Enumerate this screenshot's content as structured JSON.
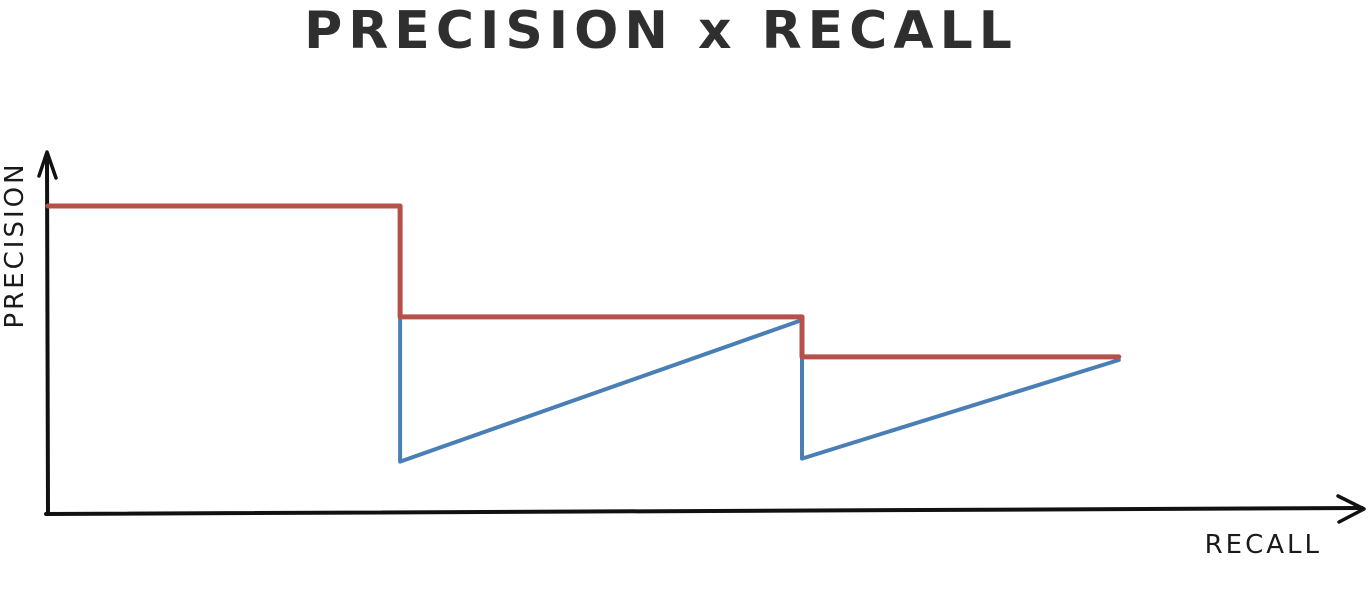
{
  "chart_data": {
    "type": "line",
    "title": "PRECISION x RECALL",
    "xlabel": "RECALL",
    "ylabel": "PRECISION",
    "xlim": [
      0,
      1
    ],
    "ylim": [
      0,
      1
    ],
    "grid": false,
    "legend": "none",
    "series": [
      {
        "color": "#4a7fb5",
        "x": [
          0.0,
          0.269,
          0.269,
          0.576,
          0.576,
          0.818
        ],
        "y": [
          1.0,
          1.0,
          0.17,
          0.63,
          0.18,
          0.5
        ]
      },
      {
        "color": "#b5504a",
        "x": [
          0.0,
          0.269,
          0.269,
          0.576,
          0.576,
          0.818
        ],
        "y": [
          1.0,
          1.0,
          0.64,
          0.64,
          0.51,
          0.51
        ]
      }
    ]
  }
}
